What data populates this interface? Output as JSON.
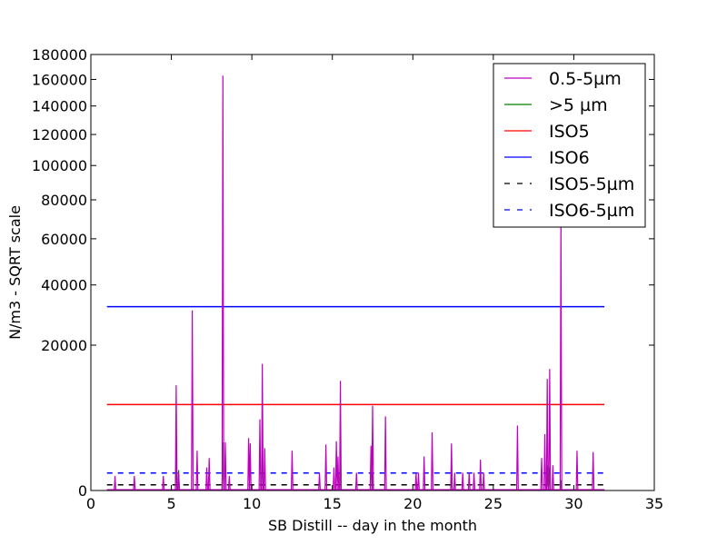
{
  "chart_data": {
    "type": "line",
    "title": "",
    "xlabel": "SB Distill -- day in the month",
    "ylabel": "N/m3 - SQRT scale",
    "xlim": [
      0,
      35
    ],
    "ylim": [
      0,
      180000
    ],
    "y_scale": "sqrt",
    "grid": false,
    "legend_position": "top-right",
    "x_ticks": [
      0,
      5,
      10,
      15,
      20,
      25,
      30,
      35
    ],
    "y_ticks": [
      0,
      20000,
      40000,
      60000,
      80000,
      100000,
      120000,
      140000,
      160000,
      180000
    ],
    "x_tick_labels": [
      "0",
      "5",
      "10",
      "15",
      "20",
      "25",
      "30",
      "35"
    ],
    "y_tick_labels": [
      "0",
      "20000",
      "40000",
      "60000",
      "80000",
      "100000",
      "120000",
      "140000",
      "160000",
      "180000"
    ],
    "series": [
      {
        "name": "0.5-5µm",
        "color": "#bf00bf",
        "style": "solid",
        "kind": "spikes",
        "spikes": [
          [
            1.5,
            200
          ],
          [
            2.7,
            200
          ],
          [
            4.5,
            200
          ],
          [
            5.3,
            10500
          ],
          [
            5.45,
            300
          ],
          [
            6.3,
            30700
          ],
          [
            6.6,
            1500
          ],
          [
            7.2,
            500
          ],
          [
            7.35,
            1000
          ],
          [
            8.2,
            163000
          ],
          [
            8.35,
            2200
          ],
          [
            8.6,
            200
          ],
          [
            9.8,
            2600
          ],
          [
            9.9,
            2100
          ],
          [
            10.5,
            4800
          ],
          [
            10.65,
            15200
          ],
          [
            10.8,
            1700
          ],
          [
            12.5,
            1500
          ],
          [
            14.2,
            300
          ],
          [
            14.6,
            2000
          ],
          [
            15.1,
            500
          ],
          [
            15.25,
            2300
          ],
          [
            15.35,
            1100
          ],
          [
            15.5,
            11400
          ],
          [
            16.5,
            300
          ],
          [
            17.4,
            1900
          ],
          [
            17.5,
            6800
          ],
          [
            18.3,
            5200
          ],
          [
            20.2,
            300
          ],
          [
            20.35,
            300
          ],
          [
            20.7,
            1100
          ],
          [
            21.2,
            3200
          ],
          [
            22.4,
            2100
          ],
          [
            22.6,
            300
          ],
          [
            23.1,
            300
          ],
          [
            23.5,
            300
          ],
          [
            23.8,
            300
          ],
          [
            24.2,
            900
          ],
          [
            24.4,
            300
          ],
          [
            26.5,
            4000
          ],
          [
            28.0,
            1000
          ],
          [
            28.2,
            3000
          ],
          [
            28.35,
            11800
          ],
          [
            28.5,
            14000
          ],
          [
            28.7,
            600
          ],
          [
            29.2,
            70000
          ],
          [
            30.2,
            1500
          ],
          [
            31.2,
            1400
          ]
        ]
      },
      {
        "name": ">5 µm",
        "color": "#008000",
        "style": "solid",
        "kind": "spikes",
        "spikes": [
          [
            5.3,
            1200
          ],
          [
            5.45,
            400
          ],
          [
            8.2,
            2200
          ],
          [
            10.65,
            2500
          ],
          [
            15.5,
            1400
          ],
          [
            17.5,
            300
          ],
          [
            22.4,
            200
          ],
          [
            28.35,
            600
          ],
          [
            28.5,
            500
          ],
          [
            29.2,
            100
          ]
        ]
      },
      {
        "name": "ISO5",
        "color": "#ff0000",
        "style": "solid",
        "kind": "hline",
        "x": [
          1,
          31.9
        ],
        "y": 7000
      },
      {
        "name": "ISO6",
        "color": "#0000ff",
        "style": "solid",
        "kind": "hline",
        "x": [
          1,
          31.9
        ],
        "y": 32000
      },
      {
        "name": "ISO5-5µm",
        "color": "#000000",
        "style": "dashed",
        "kind": "hline",
        "x": [
          1,
          31.9
        ],
        "y": 30
      },
      {
        "name": "ISO6-5µm",
        "color": "#0000ff",
        "style": "dashed",
        "kind": "hline",
        "x": [
          1,
          31.9
        ],
        "y": 290
      }
    ]
  }
}
